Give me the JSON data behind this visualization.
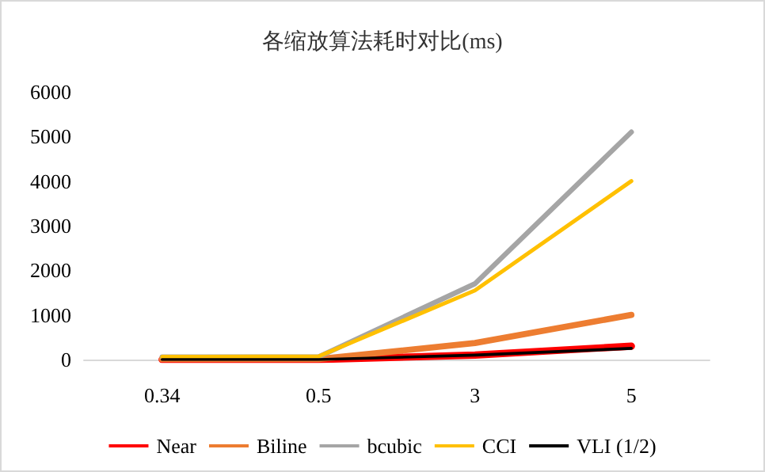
{
  "chart_data": {
    "type": "line",
    "title": "各缩放算法耗时对比(ms)",
    "categories": [
      "0.34",
      "0.5",
      "3",
      "5"
    ],
    "series": [
      {
        "name": "Near",
        "color": "#ff0000",
        "values": [
          0,
          0,
          100,
          300
        ]
      },
      {
        "name": "Biline",
        "color": "#ed7d31",
        "values": [
          10,
          10,
          370,
          1000
        ]
      },
      {
        "name": "bcubic",
        "color": "#a5a5a5",
        "values": [
          60,
          60,
          1700,
          5100
        ]
      },
      {
        "name": "CCI",
        "color": "#ffc000",
        "values": [
          60,
          70,
          1550,
          4000
        ]
      },
      {
        "name": "VLI (1/2)",
        "color": "#000000",
        "values": [
          0,
          0,
          100,
          250
        ]
      }
    ],
    "ylim": [
      0,
      6000
    ],
    "yticks": [
      0,
      1000,
      2000,
      3000,
      4000,
      5000,
      6000
    ],
    "grid": false,
    "legend": "bottom",
    "marker": "none",
    "line_style": "solid"
  }
}
